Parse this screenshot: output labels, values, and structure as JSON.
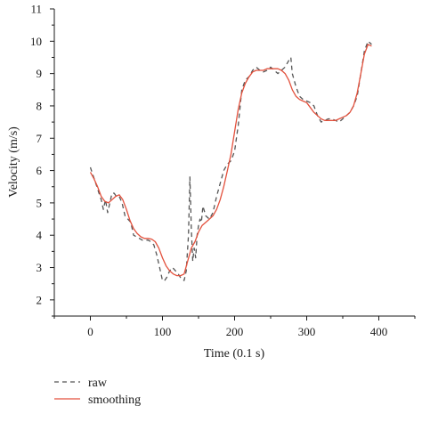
{
  "chart_data": {
    "type": "line",
    "xlabel": "Time (0.1 s)",
    "ylabel": "Velocity (m/s)",
    "xlim": [
      -50,
      450
    ],
    "ylim": [
      1.5,
      11
    ],
    "xticks": [
      0,
      100,
      200,
      300,
      400
    ],
    "yticks": [
      2,
      3,
      4,
      5,
      6,
      7,
      8,
      9,
      10,
      11
    ],
    "grid": false,
    "legend": "bottom-left, below plot",
    "series": [
      {
        "name": "raw",
        "style": "dashed",
        "color": "#555555",
        "x": [
          0,
          3,
          6,
          9,
          12,
          15,
          18,
          21,
          24,
          27,
          30,
          33,
          36,
          40,
          44,
          48,
          52,
          56,
          60,
          64,
          68,
          72,
          76,
          80,
          84,
          88,
          92,
          96,
          100,
          103,
          106,
          110,
          114,
          118,
          122,
          126,
          130,
          133,
          136,
          138,
          140,
          142,
          144,
          146,
          148,
          150,
          152,
          154,
          156,
          160,
          165,
          170,
          175,
          180,
          185,
          190,
          195,
          200,
          205,
          210,
          215,
          220,
          225,
          230,
          235,
          240,
          245,
          250,
          255,
          260,
          265,
          270,
          275,
          278,
          280,
          285,
          290,
          295,
          300,
          305,
          310,
          315,
          320,
          325,
          330,
          335,
          340,
          345,
          350,
          355,
          360,
          365,
          370,
          375,
          380,
          385,
          390
        ],
        "y": [
          6.1,
          5.9,
          5.7,
          5.5,
          5.3,
          5.1,
          4.8,
          5.1,
          4.7,
          5.0,
          5.3,
          5.3,
          5.2,
          5.2,
          5.0,
          4.6,
          4.5,
          4.4,
          4.0,
          3.95,
          3.9,
          3.85,
          3.85,
          3.85,
          3.8,
          3.7,
          3.4,
          3.0,
          2.6,
          2.6,
          2.7,
          2.9,
          3.0,
          2.9,
          2.8,
          2.65,
          2.6,
          2.9,
          4.0,
          5.8,
          4.2,
          3.2,
          3.6,
          3.3,
          4.0,
          4.3,
          4.5,
          4.4,
          4.9,
          4.6,
          4.5,
          4.7,
          5.2,
          5.6,
          6.0,
          6.2,
          6.3,
          6.6,
          7.4,
          8.5,
          8.8,
          8.9,
          9.1,
          9.2,
          9.1,
          9.05,
          9.1,
          9.2,
          9.1,
          9.0,
          9.1,
          9.2,
          9.4,
          9.5,
          9.0,
          8.6,
          8.3,
          8.2,
          8.15,
          8.1,
          8.0,
          7.7,
          7.5,
          7.55,
          7.6,
          7.6,
          7.55,
          7.5,
          7.6,
          7.7,
          7.8,
          8.0,
          8.3,
          9.0,
          9.7,
          10.0,
          9.9
        ]
      },
      {
        "name": "smoothing",
        "style": "solid",
        "color": "#e3513d",
        "x": [
          0,
          5,
          10,
          15,
          20,
          25,
          30,
          35,
          40,
          45,
          50,
          55,
          60,
          65,
          70,
          75,
          80,
          85,
          90,
          95,
          100,
          105,
          110,
          115,
          120,
          125,
          130,
          135,
          140,
          145,
          150,
          155,
          160,
          165,
          170,
          175,
          180,
          185,
          190,
          195,
          200,
          205,
          210,
          215,
          220,
          225,
          230,
          235,
          240,
          245,
          250,
          255,
          260,
          265,
          270,
          275,
          280,
          285,
          290,
          295,
          300,
          305,
          310,
          315,
          320,
          325,
          330,
          335,
          340,
          345,
          350,
          355,
          360,
          365,
          370,
          375,
          380,
          385,
          390
        ],
        "y": [
          5.95,
          5.75,
          5.5,
          5.2,
          5.05,
          5.0,
          5.1,
          5.2,
          5.25,
          5.1,
          4.8,
          4.45,
          4.2,
          4.05,
          3.95,
          3.9,
          3.9,
          3.88,
          3.8,
          3.6,
          3.3,
          3.05,
          2.9,
          2.8,
          2.75,
          2.75,
          2.8,
          3.2,
          3.6,
          3.8,
          4.1,
          4.3,
          4.4,
          4.5,
          4.6,
          4.8,
          5.1,
          5.5,
          6.0,
          6.5,
          7.2,
          7.9,
          8.4,
          8.7,
          8.9,
          9.05,
          9.1,
          9.1,
          9.1,
          9.15,
          9.15,
          9.15,
          9.15,
          9.1,
          9.0,
          8.8,
          8.5,
          8.3,
          8.2,
          8.15,
          8.1,
          7.95,
          7.8,
          7.7,
          7.6,
          7.55,
          7.55,
          7.55,
          7.55,
          7.6,
          7.65,
          7.7,
          7.8,
          8.0,
          8.4,
          9.0,
          9.6,
          9.9,
          9.85
        ]
      }
    ]
  }
}
